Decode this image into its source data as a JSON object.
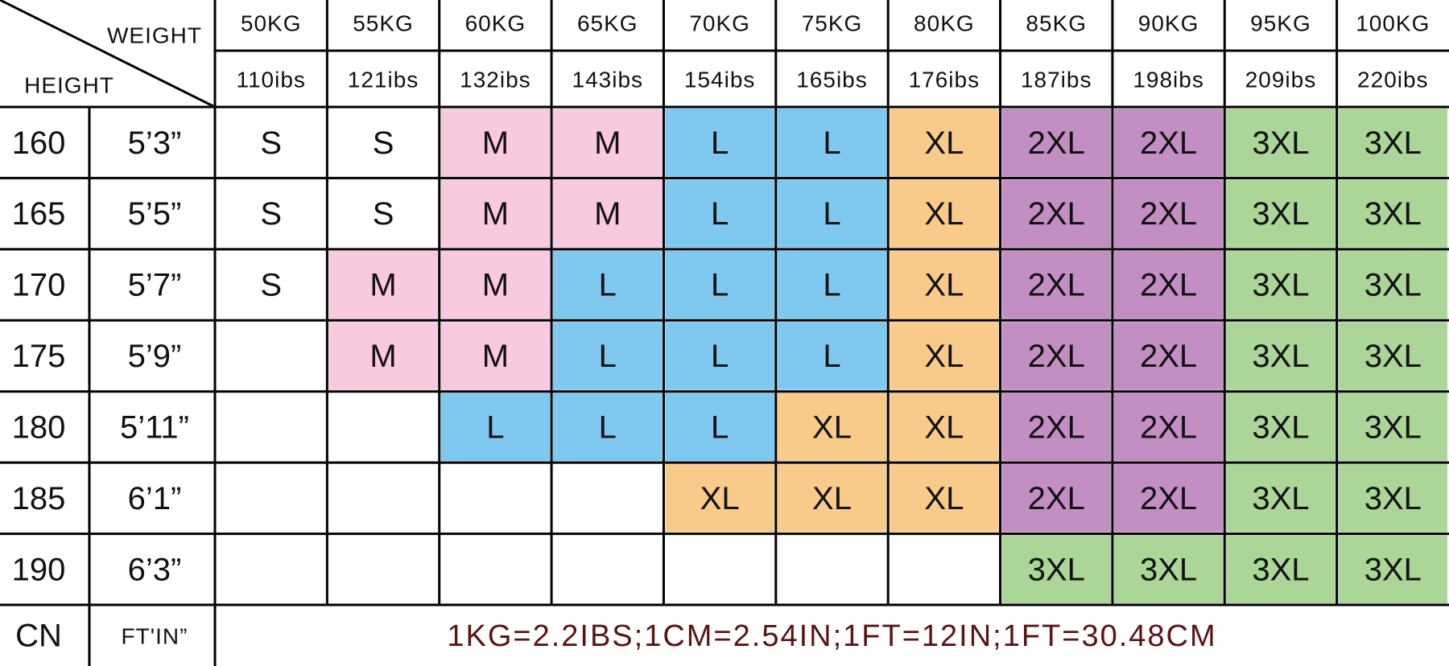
{
  "header": {
    "weight_label": "WEIGHT",
    "height_label": "HEIGHT",
    "kg": [
      "50KG",
      "55KG",
      "60KG",
      "65KG",
      "70KG",
      "75KG",
      "80KG",
      "85KG",
      "90KG",
      "95KG",
      "100KG"
    ],
    "lbs": [
      "110ibs",
      "121ibs",
      "132ibs",
      "143ibs",
      "154ibs",
      "165ibs",
      "176ibs",
      "187ibs",
      "198ibs",
      "209ibs",
      "220ibs"
    ]
  },
  "rows": [
    {
      "cm": "160",
      "ft": "5’3”",
      "sizes": [
        "S",
        "S",
        "M",
        "M",
        "L",
        "L",
        "XL",
        "2XL",
        "2XL",
        "3XL",
        "3XL"
      ]
    },
    {
      "cm": "165",
      "ft": "5’5”",
      "sizes": [
        "S",
        "S",
        "M",
        "M",
        "L",
        "L",
        "XL",
        "2XL",
        "2XL",
        "3XL",
        "3XL"
      ]
    },
    {
      "cm": "170",
      "ft": "5’7”",
      "sizes": [
        "S",
        "M",
        "M",
        "L",
        "L",
        "L",
        "XL",
        "2XL",
        "2XL",
        "3XL",
        "3XL"
      ]
    },
    {
      "cm": "175",
      "ft": "5’9”",
      "sizes": [
        null,
        "M",
        "M",
        "L",
        "L",
        "L",
        "XL",
        "2XL",
        "2XL",
        "3XL",
        "3XL"
      ]
    },
    {
      "cm": "180",
      "ft": "5’11”",
      "sizes": [
        null,
        null,
        "L",
        "L",
        "L",
        "XL",
        "XL",
        "2XL",
        "2XL",
        "3XL",
        "3XL"
      ]
    },
    {
      "cm": "185",
      "ft": "6’1”",
      "sizes": [
        null,
        null,
        null,
        null,
        "XL",
        "XL",
        "XL",
        "2XL",
        "2XL",
        "3XL",
        "3XL"
      ]
    },
    {
      "cm": "190",
      "ft": "6’3”",
      "sizes": [
        null,
        null,
        null,
        null,
        null,
        null,
        null,
        "3XL",
        "3XL",
        "3XL",
        "3XL"
      ]
    }
  ],
  "footer": {
    "cn": "CN",
    "ftin": "FT'IN”",
    "note": "1KG=2.2IBS;1CM=2.54IN;1FT=12IN;1FT=30.48CM"
  },
  "size_colors": {
    "M": "#f9c9e0",
    "L": "#7fc8f0",
    "XL": "#f8cb8b",
    "2XL": "#c38fc3",
    "3XL": "#acd598"
  }
}
